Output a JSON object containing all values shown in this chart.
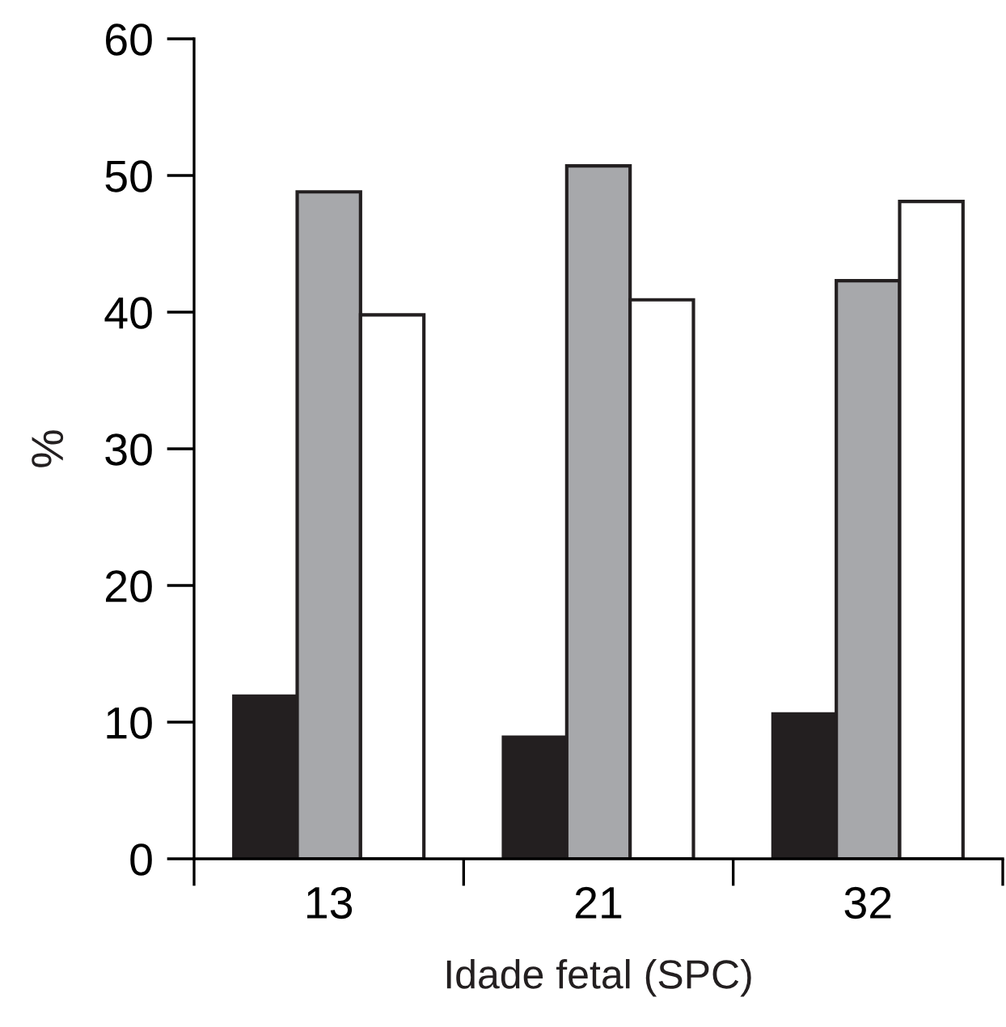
{
  "chart_data": {
    "type": "bar",
    "xlabel": "Idade fetal (SPC)",
    "ylabel": "%",
    "categories": [
      "13",
      "21",
      "32"
    ],
    "series": [
      {
        "color": "#231f20",
        "values": [
          11.9,
          8.9,
          10.6
        ]
      },
      {
        "color": "#a7a8ab",
        "values": [
          48.8,
          50.7,
          42.3
        ]
      },
      {
        "color": "#ffffff",
        "values": [
          39.8,
          40.9,
          48.1
        ]
      }
    ],
    "ylim": [
      0,
      60
    ],
    "yticks": [
      0,
      10,
      20,
      30,
      40,
      50,
      60
    ],
    "grid": false,
    "legend": false
  }
}
